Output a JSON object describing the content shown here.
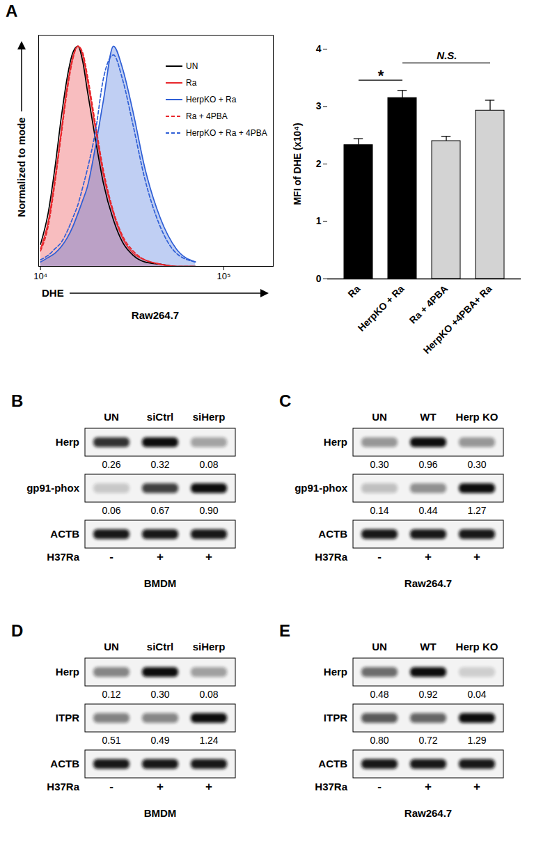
{
  "chart_data": [
    {
      "type": "line",
      "panel": "A",
      "x_label": "DHE",
      "y_label": "Normalized to mode",
      "caption": "Raw264.7",
      "log": "x",
      "tick_labels": "x",
      "legend": "top-right",
      "xlim": [
        9770,
        186000
      ],
      "ylim": [
        0,
        105
      ],
      "xticks": [
        {
          "value": 10000,
          "label": "10⁴"
        },
        {
          "value": 100000,
          "label": "10⁵"
        }
      ],
      "x": [
        10000,
        11000,
        12000,
        13000,
        14000,
        15000,
        16000,
        17000,
        18000,
        20000,
        22000,
        25000,
        28000,
        32000,
        37000,
        45000,
        55000,
        70000
      ],
      "series": [
        {
          "name": "UN",
          "color": "#000000",
          "type": "line",
          "line_style": "solid",
          "values": [
            10,
            24,
            45,
            68,
            86,
            97,
            100,
            93,
            80,
            57,
            38,
            21,
            11,
            5,
            2,
            1,
            0,
            0
          ]
        },
        {
          "name": "Ra",
          "color": "#e8262b",
          "type": "area",
          "line_style": "solid",
          "values": [
            8,
            20,
            40,
            62,
            82,
            95,
            100,
            96,
            85,
            62,
            42,
            24,
            13,
            6,
            3,
            1,
            0,
            0
          ]
        },
        {
          "name": "HerpKO + Ra",
          "color": "#2f5fd6",
          "type": "area",
          "line_style": "solid",
          "values": [
            2,
            4,
            6,
            9,
            13,
            18,
            24,
            30,
            36,
            55,
            75,
            100,
            90,
            70,
            45,
            22,
            8,
            2
          ]
        },
        {
          "name": "Ra + 4PBA",
          "color": "#e8262b",
          "type": "line",
          "line_style": "dashed",
          "values": [
            7,
            18,
            38,
            60,
            80,
            94,
            100,
            97,
            87,
            64,
            44,
            25,
            14,
            7,
            3,
            1,
            0,
            0
          ]
        },
        {
          "name": "HerpKO + Ra + 4PBA",
          "color": "#2f5fd6",
          "type": "line",
          "line_style": "dashed",
          "values": [
            3,
            5,
            8,
            11,
            16,
            22,
            28,
            36,
            44,
            62,
            85,
            96,
            85,
            64,
            40,
            18,
            6,
            2
          ]
        }
      ]
    },
    {
      "type": "bar",
      "y_label": "MFI of DHE (x10⁴)",
      "categories": [
        "Ra",
        "HerpKO + Ra",
        "Ra + 4PBA",
        "HerpKO +4PBA+ Ra"
      ],
      "values": [
        2.33,
        3.15,
        2.4,
        2.93
      ],
      "errors": [
        0.11,
        0.13,
        0.08,
        0.18
      ],
      "colors": [
        "#000000",
        "#000000",
        "#d3d3d3",
        "#d3d3d3"
      ],
      "ylim": [
        0,
        4
      ],
      "yticks": [
        0,
        1,
        2,
        3,
        4
      ],
      "annotations": [
        {
          "from": "Ra",
          "to": "HerpKO + Ra",
          "text": "*"
        },
        {
          "from": "HerpKO + Ra",
          "to": "HerpKO +4PBA+ Ra",
          "text": "N.S."
        }
      ]
    }
  ],
  "blots": [
    {
      "panel": "B",
      "lanes": [
        "UN",
        "siCtrl",
        "siHerp"
      ],
      "cell": "BMDM",
      "treatment": {
        "name": "H37Ra",
        "values": [
          "-",
          "+",
          "+"
        ]
      },
      "rows": [
        {
          "name": "Herp",
          "values": [
            0.26,
            0.32,
            0.08
          ],
          "value_labels": [
            "0.26",
            "0.32",
            "0.08"
          ]
        },
        {
          "name": "gp91-phox",
          "values": [
            0.06,
            0.67,
            0.9
          ],
          "value_labels": [
            "0.06",
            "0.67",
            "0.90"
          ]
        },
        {
          "name": "ACTB"
        }
      ]
    },
    {
      "panel": "C",
      "lanes": [
        "UN",
        "WT",
        "Herp KO"
      ],
      "cell": "Raw264.7",
      "treatment": {
        "name": "H37Ra",
        "values": [
          "-",
          "+",
          "+"
        ]
      },
      "rows": [
        {
          "name": "Herp",
          "values": [
            0.3,
            0.96,
            0.3
          ],
          "value_labels": [
            "0.30",
            "0.96",
            "0.30"
          ]
        },
        {
          "name": "gp91-phox",
          "values": [
            0.14,
            0.44,
            1.27
          ],
          "value_labels": [
            "0.14",
            "0.44",
            "1.27"
          ]
        },
        {
          "name": "ACTB"
        }
      ]
    },
    {
      "panel": "D",
      "lanes": [
        "UN",
        "siCtrl",
        "siHerp"
      ],
      "cell": "BMDM",
      "treatment": {
        "name": "H37Ra",
        "values": [
          "-",
          "+",
          "+"
        ]
      },
      "rows": [
        {
          "name": "Herp",
          "values": [
            0.12,
            0.3,
            0.08
          ],
          "value_labels": [
            "0.12",
            "0.30",
            "0.08"
          ]
        },
        {
          "name": "ITPR",
          "values": [
            0.51,
            0.49,
            1.24
          ],
          "value_labels": [
            "0.51",
            "0.49",
            "1.24"
          ]
        },
        {
          "name": "ACTB"
        }
      ]
    },
    {
      "panel": "E",
      "lanes": [
        "UN",
        "WT",
        "Herp KO"
      ],
      "cell": "Raw264.7",
      "treatment": {
        "name": "H37Ra",
        "values": [
          "-",
          "+",
          "+"
        ]
      },
      "rows": [
        {
          "name": "Herp",
          "values": [
            0.48,
            0.92,
            0.04
          ],
          "value_labels": [
            "0.48",
            "0.92",
            "0.04"
          ]
        },
        {
          "name": "ITPR",
          "values": [
            0.8,
            0.72,
            1.29
          ],
          "value_labels": [
            "0.80",
            "0.72",
            "1.29"
          ]
        },
        {
          "name": "ACTB"
        }
      ]
    }
  ]
}
